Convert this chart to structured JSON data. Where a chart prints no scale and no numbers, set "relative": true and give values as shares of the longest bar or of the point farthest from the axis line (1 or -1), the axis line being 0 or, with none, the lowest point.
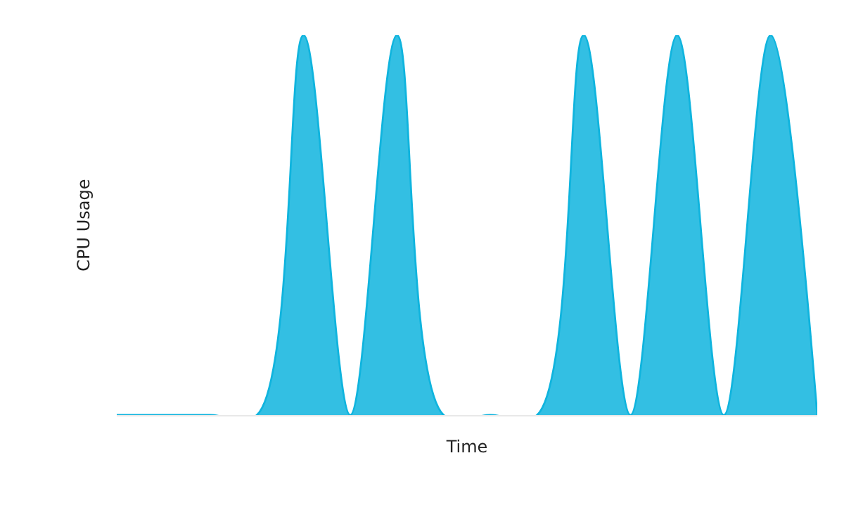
{
  "chart_data": {
    "type": "area",
    "relative": true,
    "xlabel": "Time",
    "ylabel": "CPU Usage",
    "categories": [
      null,
      null,
      null,
      null,
      null,
      null,
      null,
      null,
      null,
      null,
      null,
      null,
      null,
      null,
      null,
      null
    ],
    "series": [
      {
        "color": "#0fb4de",
        "values": [
          0,
          0,
          0,
          0,
          1,
          0,
          1,
          0,
          0,
          0,
          1,
          0,
          1,
          0,
          1,
          0
        ]
      }
    ],
    "legend": false
  }
}
